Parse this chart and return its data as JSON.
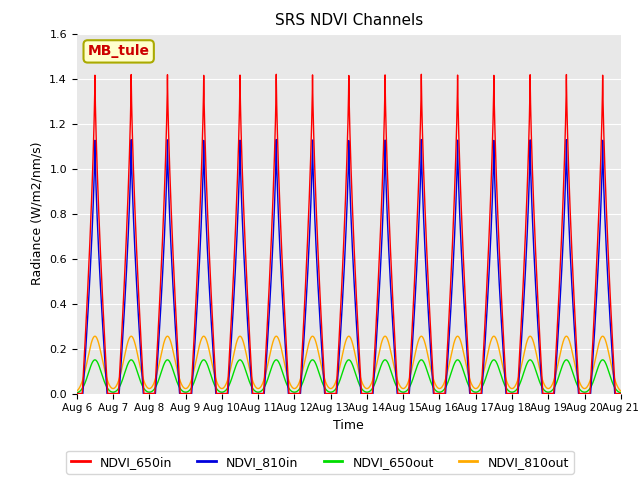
{
  "title": "SRS NDVI Channels",
  "ylabel": "Radiance (W/m2/nm/s)",
  "xlabel": "Time",
  "site_label": "MB_tule",
  "ylim": [
    0,
    1.6
  ],
  "n_days": 15,
  "peak_650in": 1.42,
  "peak_810in": 1.13,
  "peak_650out": 0.15,
  "peak_810out": 0.255,
  "colors": {
    "NDVI_650in": "#ff0000",
    "NDVI_810in": "#0000dd",
    "NDVI_650out": "#00dd00",
    "NDVI_810out": "#ffaa00"
  },
  "legend_labels": [
    "NDVI_650in",
    "NDVI_810in",
    "NDVI_650out",
    "NDVI_810out"
  ],
  "bg_color": "#e8e8e8",
  "tick_dates": [
    "Aug 6",
    "Aug 7",
    "Aug 8",
    "Aug 9",
    "Aug 10",
    "Aug 11",
    "Aug 12",
    "Aug 13",
    "Aug 14",
    "Aug 15",
    "Aug 16",
    "Aug 17",
    "Aug 18",
    "Aug 19",
    "Aug 20",
    "Aug 21"
  ],
  "figsize": [
    6.4,
    4.8
  ],
  "dpi": 100
}
